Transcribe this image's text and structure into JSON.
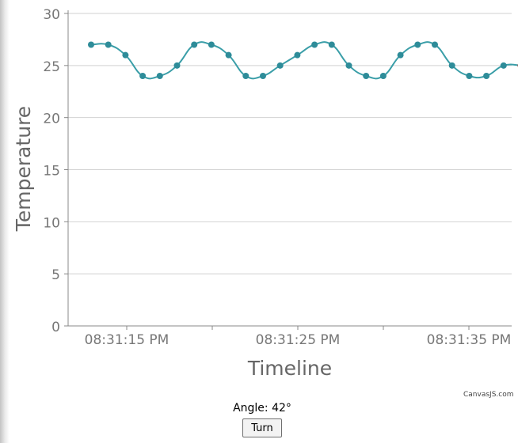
{
  "chart_data": {
    "type": "line",
    "xlabel": "Timeline",
    "ylabel": "Temperature",
    "ylim": [
      0,
      30
    ],
    "yticks": [
      0,
      5,
      10,
      15,
      20,
      25,
      30
    ],
    "xticks": [
      "08:31:15 PM",
      "08:31:25 PM",
      "08:31:35 PM"
    ],
    "x_start_tick": "08:31:15 PM",
    "x_tick_interval_seconds": 10,
    "grid": true,
    "line_type": "spline",
    "series": [
      {
        "x": [
          "08:31:12 PM",
          "08:31:13 PM",
          "08:31:14 PM",
          "08:31:15 PM",
          "08:31:16 PM",
          "08:31:17 PM",
          "08:31:18 PM",
          "08:31:19 PM",
          "08:31:20 PM",
          "08:31:21 PM",
          "08:31:22 PM",
          "08:31:23 PM",
          "08:31:24 PM",
          "08:31:25 PM",
          "08:31:26 PM",
          "08:31:27 PM",
          "08:31:28 PM",
          "08:31:29 PM",
          "08:31:30 PM",
          "08:31:31 PM",
          "08:31:32 PM",
          "08:31:33 PM",
          "08:31:34 PM",
          "08:31:35 PM",
          "08:31:36 PM",
          "08:31:37 PM"
        ],
        "values": [
          27,
          27,
          26,
          24,
          24,
          25,
          27,
          27,
          26,
          24,
          24,
          25,
          26,
          27,
          27,
          25,
          24,
          24,
          26,
          27,
          27,
          25,
          24,
          24,
          25,
          25
        ]
      }
    ],
    "colors": {
      "line": "#3a9ea8",
      "marker": "#2e8c99",
      "last_marker": "#c0392b",
      "grid": "#d2d2d2",
      "axis": "#888888",
      "text": "#777777"
    }
  },
  "credit": "CanvasJS.com",
  "controls": {
    "angle_text": "Angle: 42°",
    "turn_label": "Turn"
  }
}
